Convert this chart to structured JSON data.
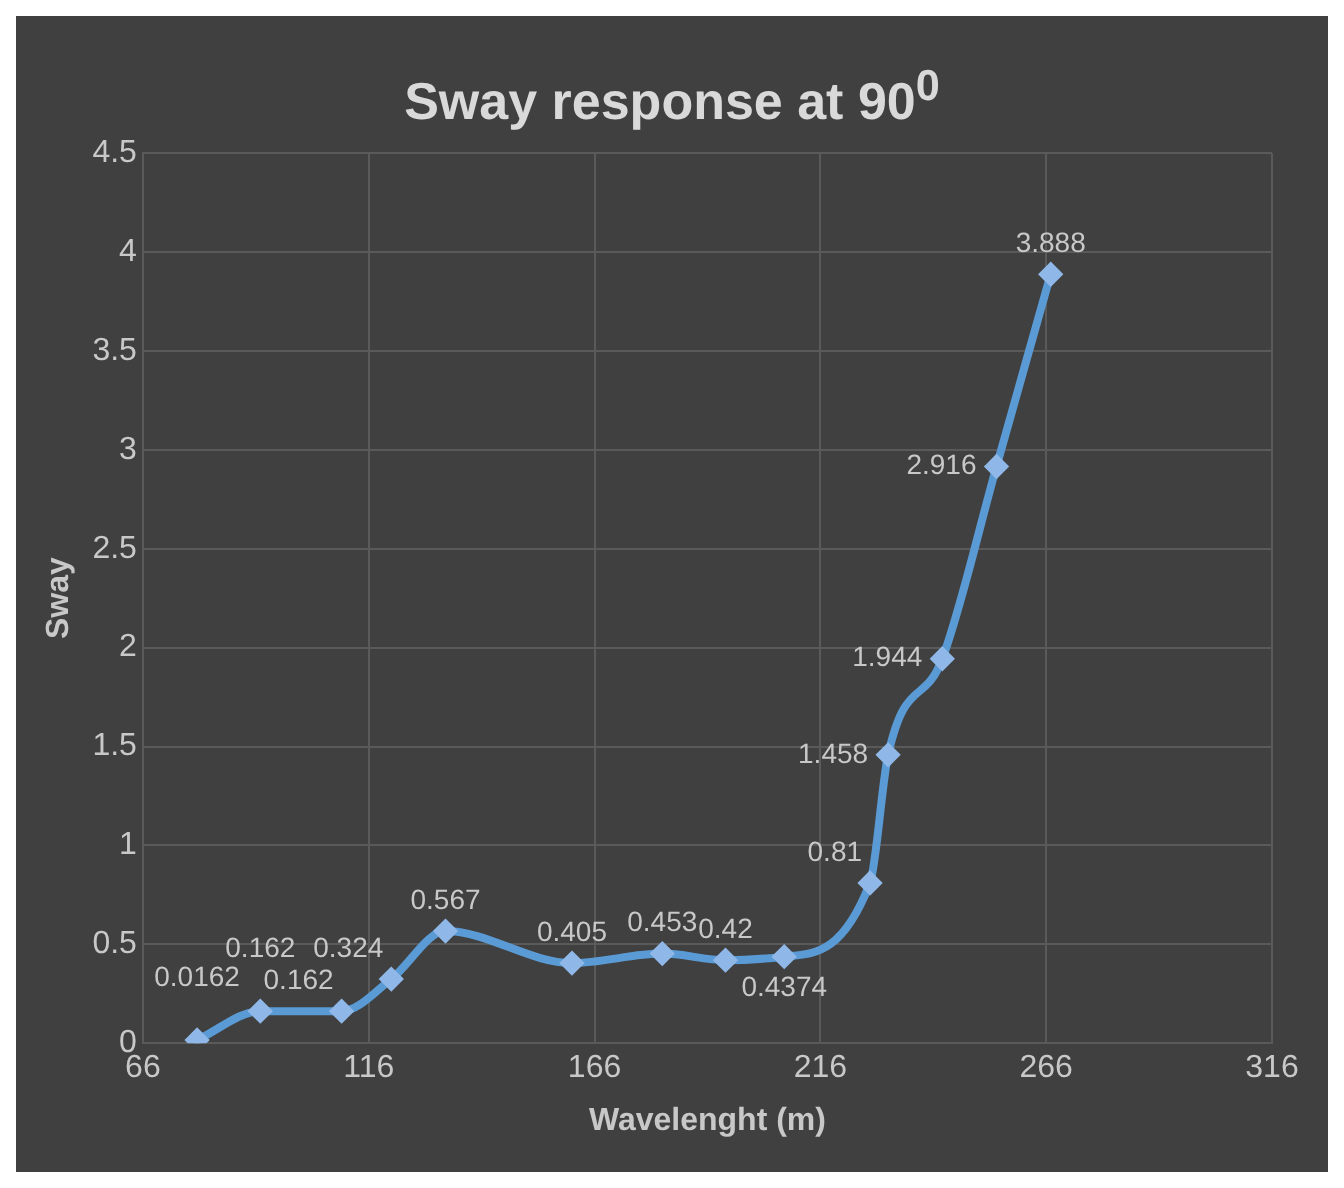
{
  "chart_data": {
    "type": "line",
    "title": "Sway response at 90$^{0}$",
    "xlabel": "Wavelenght (m)",
    "ylabel": "Sway",
    "x": [
      78,
      92,
      110,
      121,
      133,
      161,
      181,
      195,
      208,
      227,
      231,
      243,
      255,
      267
    ],
    "series": [
      {
        "color": "#5b9bd5",
        "values": [
          0.0162,
          0.162,
          0.162,
          0.324,
          0.567,
          0.405,
          0.453,
          0.42,
          0.4374,
          0.81,
          1.458,
          1.944,
          2.916,
          3.888
        ]
      }
    ],
    "xlim": [
      66,
      316
    ],
    "xticks": [
      66,
      116,
      166,
      216,
      266,
      316
    ],
    "ylim": [
      0,
      4.5
    ],
    "yticks": [
      0,
      0.5,
      1,
      1.5,
      2,
      2.5,
      3,
      3.5,
      4,
      4.5
    ],
    "grid": true,
    "legend": false,
    "marker": "diamond",
    "line_style": "solid",
    "data_labels": true
  }
}
